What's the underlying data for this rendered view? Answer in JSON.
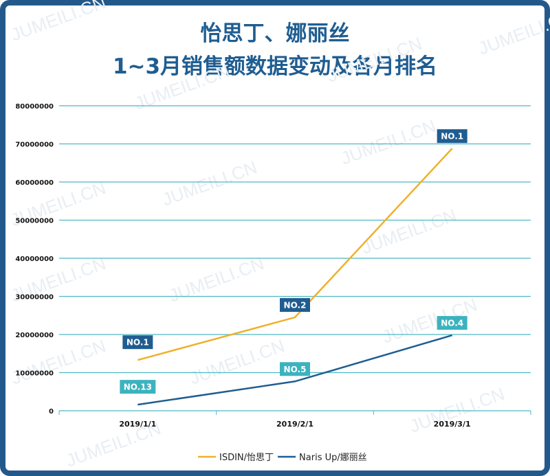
{
  "title_line1": "怡思丁、娜丽丝",
  "title_line2": "1~3月销售额数据变动及各月排名",
  "watermark": "JUMEILI.CN",
  "chart_data": {
    "type": "line",
    "categories": [
      "2019/1/1",
      "2019/2/1",
      "2019/3/1"
    ],
    "ylim": [
      0,
      80000000
    ],
    "yticks": [
      "0",
      "10000000",
      "20000000",
      "30000000",
      "40000000",
      "50000000",
      "60000000",
      "70000000",
      "80000000"
    ],
    "grid": true,
    "legend_position": "bottom",
    "series": [
      {
        "name": "ISDIN/怡思丁",
        "color": "#f0b02a",
        "values": [
          13300000,
          24500000,
          68800000
        ],
        "labels": [
          "NO.1",
          "NO.2",
          "NO.1"
        ],
        "label_color": "#1f5d91"
      },
      {
        "name": "Naris Up/娜丽丝",
        "color": "#1f5d91",
        "values": [
          1600000,
          7700000,
          19800000
        ],
        "labels": [
          "NO.13",
          "NO.5",
          "NO.4"
        ],
        "label_color": "#3bb3bf"
      }
    ]
  }
}
